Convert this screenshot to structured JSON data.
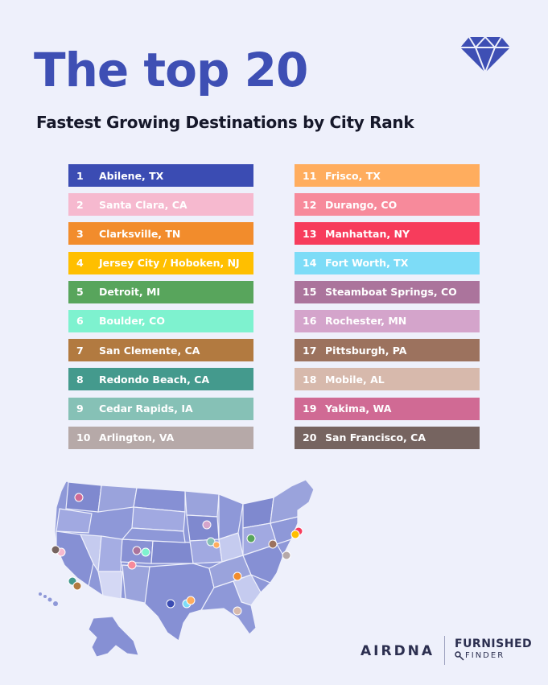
{
  "header": {
    "title": "The top 20",
    "subtitle": "Fastest Growing Destinations by City Rank"
  },
  "icons": {
    "diamond": "diamond-icon",
    "key": "key-icon"
  },
  "colors": {
    "title": "#3e4fb4",
    "background": "#eef0fb",
    "map_land": "#8e98d8",
    "map_border": "#eef0fb"
  },
  "rankings": {
    "left": [
      {
        "rank": "1",
        "city": "Abilene, TX",
        "color": "#3b4cb3"
      },
      {
        "rank": "2",
        "city": "Santa Clara, CA",
        "color": "#f6b9cf"
      },
      {
        "rank": "3",
        "city": "Clarksville, TN",
        "color": "#f28c2c"
      },
      {
        "rank": "4",
        "city": "Jersey City / Hoboken, NJ",
        "color": "#ffbf00"
      },
      {
        "rank": "5",
        "city": "Detroit, MI",
        "color": "#58a55c"
      },
      {
        "rank": "6",
        "city": "Boulder, CO",
        "color": "#7ef2cf"
      },
      {
        "rank": "7",
        "city": "San Clemente, CA",
        "color": "#b27a40"
      },
      {
        "rank": "8",
        "city": "Redondo Beach, CA",
        "color": "#449a8d"
      },
      {
        "rank": "9",
        "city": "Cedar Rapids, IA",
        "color": "#86c1b6"
      },
      {
        "rank": "10",
        "city": "Arlington, VA",
        "color": "#b6a9a8"
      }
    ],
    "right": [
      {
        "rank": "11",
        "city": "Frisco, TX",
        "color": "#ffad5e"
      },
      {
        "rank": "12",
        "city": "Durango, CO",
        "color": "#f78a9b"
      },
      {
        "rank": "13",
        "city": "Manhattan, NY",
        "color": "#f73c5c"
      },
      {
        "rank": "14",
        "city": "Fort Worth, TX",
        "color": "#7ddcf7"
      },
      {
        "rank": "15",
        "city": "Steamboat Springs, CO",
        "color": "#ab749c"
      },
      {
        "rank": "16",
        "city": "Rochester, MN",
        "color": "#d4a4cb"
      },
      {
        "rank": "17",
        "city": "Pittsburgh, PA",
        "color": "#9c725e"
      },
      {
        "rank": "18",
        "city": "Mobile, AL",
        "color": "#d7b9ac"
      },
      {
        "rank": "19",
        "city": "Yakima, WA",
        "color": "#d06a94"
      },
      {
        "rank": "20",
        "city": "San Francisco, CA",
        "color": "#766460"
      }
    ]
  },
  "footer": {
    "brand1": "AIRDNA",
    "brand2_line1": "FURNISHED",
    "brand2_line2": "FINDER"
  }
}
